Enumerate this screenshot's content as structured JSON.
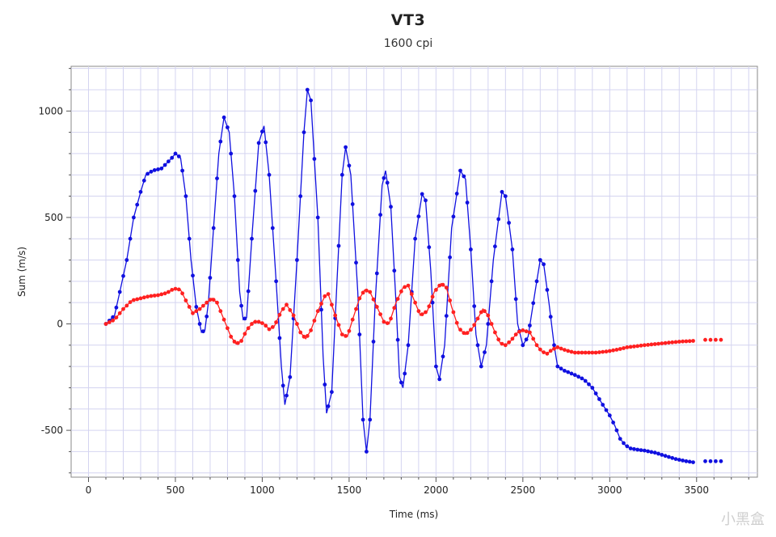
{
  "chart_data": {
    "type": "line",
    "title": "VT3",
    "subtitle": "1600 cpi",
    "xlabel": "Time (ms)",
    "ylabel": "Sum (m/s)",
    "xlim": [
      -100,
      3850
    ],
    "ylim": [
      -720,
      1210
    ],
    "xticks": [
      0,
      500,
      1000,
      1500,
      2000,
      2500,
      3000,
      3500
    ],
    "yticks": [
      -500,
      0,
      500,
      1000
    ],
    "grid": true,
    "series": [
      {
        "color": "#1010e0",
        "points": [
          [
            100,
            0
          ],
          [
            120,
            15
          ],
          [
            150,
            40
          ],
          [
            180,
            150
          ],
          [
            220,
            300
          ],
          [
            260,
            500
          ],
          [
            300,
            620
          ],
          [
            330,
            700
          ],
          [
            370,
            720
          ],
          [
            420,
            730
          ],
          [
            480,
            780
          ],
          [
            500,
            800
          ],
          [
            530,
            780
          ],
          [
            560,
            600
          ],
          [
            590,
            300
          ],
          [
            620,
            80
          ],
          [
            650,
            -40
          ],
          [
            670,
            -30
          ],
          [
            690,
            100
          ],
          [
            720,
            450
          ],
          [
            750,
            800
          ],
          [
            780,
            970
          ],
          [
            810,
            900
          ],
          [
            840,
            600
          ],
          [
            870,
            150
          ],
          [
            890,
            20
          ],
          [
            910,
            30
          ],
          [
            940,
            400
          ],
          [
            980,
            850
          ],
          [
            1010,
            930
          ],
          [
            1040,
            700
          ],
          [
            1080,
            200
          ],
          [
            1110,
            -200
          ],
          [
            1130,
            -380
          ],
          [
            1160,
            -250
          ],
          [
            1200,
            300
          ],
          [
            1240,
            900
          ],
          [
            1260,
            1100
          ],
          [
            1280,
            1050
          ],
          [
            1320,
            500
          ],
          [
            1350,
            -150
          ],
          [
            1370,
            -420
          ],
          [
            1400,
            -320
          ],
          [
            1430,
            200
          ],
          [
            1460,
            700
          ],
          [
            1480,
            830
          ],
          [
            1510,
            700
          ],
          [
            1550,
            150
          ],
          [
            1580,
            -450
          ],
          [
            1600,
            -600
          ],
          [
            1620,
            -450
          ],
          [
            1650,
            100
          ],
          [
            1690,
            650
          ],
          [
            1710,
            720
          ],
          [
            1740,
            550
          ],
          [
            1770,
            100
          ],
          [
            1790,
            -250
          ],
          [
            1810,
            -300
          ],
          [
            1840,
            -100
          ],
          [
            1880,
            400
          ],
          [
            1920,
            610
          ],
          [
            1940,
            580
          ],
          [
            1970,
            250
          ],
          [
            2000,
            -200
          ],
          [
            2020,
            -260
          ],
          [
            2050,
            -100
          ],
          [
            2090,
            450
          ],
          [
            2140,
            720
          ],
          [
            2170,
            680
          ],
          [
            2200,
            350
          ],
          [
            2230,
            -50
          ],
          [
            2260,
            -200
          ],
          [
            2290,
            -100
          ],
          [
            2330,
            300
          ],
          [
            2380,
            620
          ],
          [
            2400,
            600
          ],
          [
            2440,
            350
          ],
          [
            2470,
            0
          ],
          [
            2500,
            -100
          ],
          [
            2530,
            -60
          ],
          [
            2570,
            150
          ],
          [
            2600,
            300
          ],
          [
            2620,
            280
          ],
          [
            2650,
            100
          ],
          [
            2680,
            -100
          ],
          [
            2700,
            -200
          ],
          [
            2740,
            -220
          ],
          [
            2800,
            -240
          ],
          [
            2850,
            -260
          ],
          [
            2900,
            -300
          ],
          [
            2960,
            -380
          ],
          [
            3000,
            -430
          ],
          [
            3030,
            -480
          ],
          [
            3060,
            -540
          ],
          [
            3090,
            -570
          ],
          [
            3120,
            -585
          ],
          [
            3150,
            -590
          ],
          [
            3200,
            -595
          ],
          [
            3260,
            -605
          ],
          [
            3320,
            -620
          ],
          [
            3380,
            -635
          ],
          [
            3440,
            -645
          ],
          [
            3480,
            -650
          ],
          [
            3550,
            -645
          ],
          [
            3660,
            -645
          ]
        ]
      },
      {
        "color": "#ff2020",
        "points": [
          [
            100,
            0
          ],
          [
            150,
            20
          ],
          [
            200,
            70
          ],
          [
            250,
            110
          ],
          [
            300,
            120
          ],
          [
            350,
            130
          ],
          [
            400,
            135
          ],
          [
            450,
            145
          ],
          [
            480,
            160
          ],
          [
            500,
            165
          ],
          [
            530,
            160
          ],
          [
            560,
            110
          ],
          [
            600,
            50
          ],
          [
            640,
            70
          ],
          [
            680,
            100
          ],
          [
            710,
            120
          ],
          [
            740,
            100
          ],
          [
            780,
            20
          ],
          [
            820,
            -60
          ],
          [
            850,
            -95
          ],
          [
            880,
            -80
          ],
          [
            910,
            -30
          ],
          [
            950,
            10
          ],
          [
            980,
            10
          ],
          [
            1010,
            0
          ],
          [
            1040,
            -25
          ],
          [
            1070,
            -10
          ],
          [
            1110,
            60
          ],
          [
            1140,
            90
          ],
          [
            1180,
            40
          ],
          [
            1220,
            -40
          ],
          [
            1250,
            -70
          ],
          [
            1280,
            -30
          ],
          [
            1320,
            60
          ],
          [
            1360,
            130
          ],
          [
            1380,
            140
          ],
          [
            1420,
            40
          ],
          [
            1460,
            -50
          ],
          [
            1490,
            -60
          ],
          [
            1520,
            20
          ],
          [
            1560,
            120
          ],
          [
            1590,
            160
          ],
          [
            1620,
            150
          ],
          [
            1660,
            80
          ],
          [
            1700,
            10
          ],
          [
            1730,
            0
          ],
          [
            1770,
            100
          ],
          [
            1810,
            170
          ],
          [
            1840,
            180
          ],
          [
            1870,
            120
          ],
          [
            1910,
            40
          ],
          [
            1950,
            60
          ],
          [
            1990,
            150
          ],
          [
            2030,
            190
          ],
          [
            2060,
            170
          ],
          [
            2090,
            80
          ],
          [
            2130,
            -20
          ],
          [
            2170,
            -50
          ],
          [
            2210,
            -20
          ],
          [
            2250,
            40
          ],
          [
            2270,
            70
          ],
          [
            2300,
            40
          ],
          [
            2340,
            -40
          ],
          [
            2370,
            -90
          ],
          [
            2400,
            -100
          ],
          [
            2430,
            -80
          ],
          [
            2470,
            -40
          ],
          [
            2500,
            -30
          ],
          [
            2540,
            -40
          ],
          [
            2580,
            -100
          ],
          [
            2610,
            -130
          ],
          [
            2640,
            -140
          ],
          [
            2670,
            -120
          ],
          [
            2700,
            -110
          ],
          [
            2750,
            -125
          ],
          [
            2800,
            -135
          ],
          [
            2860,
            -135
          ],
          [
            2920,
            -135
          ],
          [
            2980,
            -130
          ],
          [
            3050,
            -120
          ],
          [
            3100,
            -110
          ],
          [
            3150,
            -105
          ],
          [
            3200,
            -100
          ],
          [
            3260,
            -95
          ],
          [
            3320,
            -90
          ],
          [
            3380,
            -85
          ],
          [
            3430,
            -82
          ],
          [
            3480,
            -80
          ],
          [
            3550,
            -75
          ],
          [
            3660,
            -75
          ]
        ]
      }
    ]
  },
  "watermark": "小黑盒"
}
